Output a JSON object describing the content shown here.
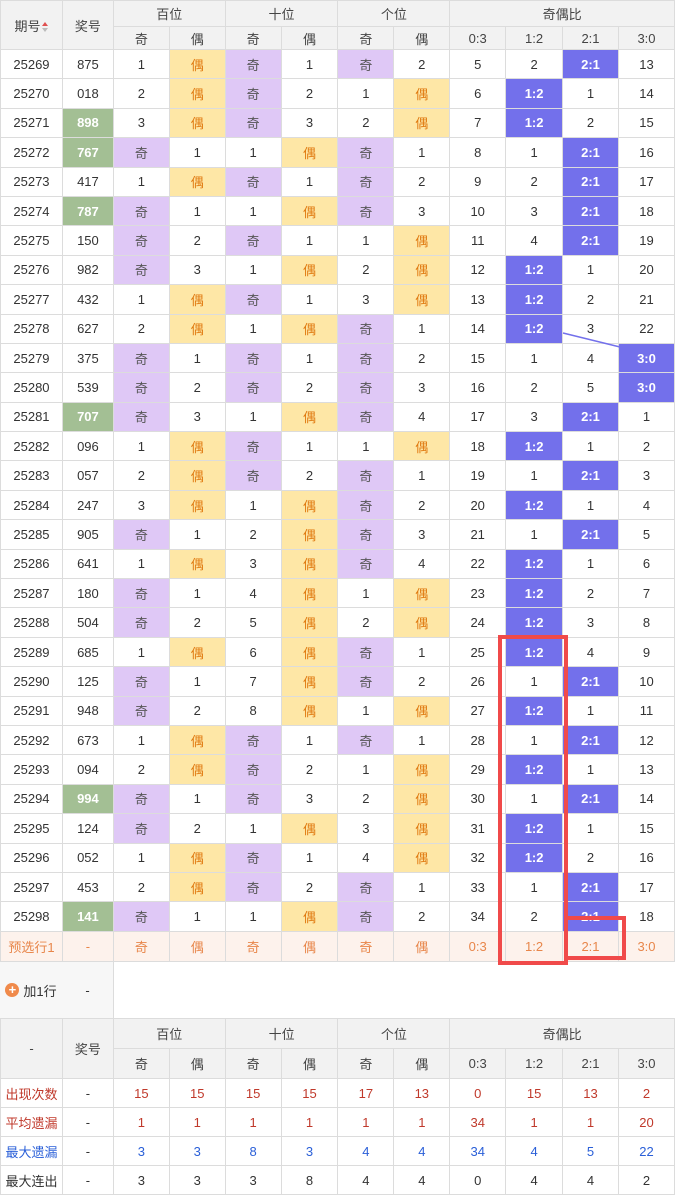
{
  "header": {
    "period": "期号",
    "draw": "奖号",
    "groups": [
      "百位",
      "十位",
      "个位",
      "奇偶比"
    ],
    "sub": [
      "奇",
      "偶",
      "奇",
      "偶",
      "奇",
      "偶",
      "0:3",
      "1:2",
      "2:1",
      "3:0"
    ]
  },
  "rows": [
    [
      "25269",
      "875",
      "1",
      "偶",
      "奇",
      "1",
      "奇",
      "2",
      "5",
      "2",
      "2:1",
      "13"
    ],
    [
      "25270",
      "018",
      "2",
      "偶",
      "奇",
      "2",
      "1",
      "偶",
      "6",
      "1:2",
      "1",
      "14"
    ],
    [
      "25271",
      "898",
      "3",
      "偶",
      "奇",
      "3",
      "2",
      "偶",
      "7",
      "1:2",
      "2",
      "15"
    ],
    [
      "25272",
      "767",
      "奇",
      "1",
      "1",
      "偶",
      "奇",
      "1",
      "8",
      "1",
      "2:1",
      "16"
    ],
    [
      "25273",
      "417",
      "1",
      "偶",
      "奇",
      "1",
      "奇",
      "2",
      "9",
      "2",
      "2:1",
      "17"
    ],
    [
      "25274",
      "787",
      "奇",
      "1",
      "1",
      "偶",
      "奇",
      "3",
      "10",
      "3",
      "2:1",
      "18"
    ],
    [
      "25275",
      "150",
      "奇",
      "2",
      "奇",
      "1",
      "1",
      "偶",
      "11",
      "4",
      "2:1",
      "19"
    ],
    [
      "25276",
      "982",
      "奇",
      "3",
      "1",
      "偶",
      "2",
      "偶",
      "12",
      "1:2",
      "1",
      "20"
    ],
    [
      "25277",
      "432",
      "1",
      "偶",
      "奇",
      "1",
      "3",
      "偶",
      "13",
      "1:2",
      "2",
      "21"
    ],
    [
      "25278",
      "627",
      "2",
      "偶",
      "1",
      "偶",
      "奇",
      "1",
      "14",
      "1:2",
      "3",
      "22"
    ],
    [
      "25279",
      "375",
      "奇",
      "1",
      "奇",
      "1",
      "奇",
      "2",
      "15",
      "1",
      "4",
      "3:0"
    ],
    [
      "25280",
      "539",
      "奇",
      "2",
      "奇",
      "2",
      "奇",
      "3",
      "16",
      "2",
      "5",
      "3:0"
    ],
    [
      "25281",
      "707",
      "奇",
      "3",
      "1",
      "偶",
      "奇",
      "4",
      "17",
      "3",
      "2:1",
      "1"
    ],
    [
      "25282",
      "096",
      "1",
      "偶",
      "奇",
      "1",
      "1",
      "偶",
      "18",
      "1:2",
      "1",
      "2"
    ],
    [
      "25283",
      "057",
      "2",
      "偶",
      "奇",
      "2",
      "奇",
      "1",
      "19",
      "1",
      "2:1",
      "3"
    ],
    [
      "25284",
      "247",
      "3",
      "偶",
      "1",
      "偶",
      "奇",
      "2",
      "20",
      "1:2",
      "1",
      "4"
    ],
    [
      "25285",
      "905",
      "奇",
      "1",
      "2",
      "偶",
      "奇",
      "3",
      "21",
      "1",
      "2:1",
      "5"
    ],
    [
      "25286",
      "641",
      "1",
      "偶",
      "3",
      "偶",
      "奇",
      "4",
      "22",
      "1:2",
      "1",
      "6"
    ],
    [
      "25287",
      "180",
      "奇",
      "1",
      "4",
      "偶",
      "1",
      "偶",
      "23",
      "1:2",
      "2",
      "7"
    ],
    [
      "25288",
      "504",
      "奇",
      "2",
      "5",
      "偶",
      "2",
      "偶",
      "24",
      "1:2",
      "3",
      "8"
    ],
    [
      "25289",
      "685",
      "1",
      "偶",
      "6",
      "偶",
      "奇",
      "1",
      "25",
      "1:2",
      "4",
      "9"
    ],
    [
      "25290",
      "125",
      "奇",
      "1",
      "7",
      "偶",
      "奇",
      "2",
      "26",
      "1",
      "2:1",
      "10"
    ],
    [
      "25291",
      "948",
      "奇",
      "2",
      "8",
      "偶",
      "1",
      "偶",
      "27",
      "1:2",
      "1",
      "11"
    ],
    [
      "25292",
      "673",
      "1",
      "偶",
      "奇",
      "1",
      "奇",
      "1",
      "28",
      "1",
      "2:1",
      "12"
    ],
    [
      "25293",
      "094",
      "2",
      "偶",
      "奇",
      "2",
      "1",
      "偶",
      "29",
      "1:2",
      "1",
      "13"
    ],
    [
      "25294",
      "994",
      "奇",
      "1",
      "奇",
      "3",
      "2",
      "偶",
      "30",
      "1",
      "2:1",
      "14"
    ],
    [
      "25295",
      "124",
      "奇",
      "2",
      "1",
      "偶",
      "3",
      "偶",
      "31",
      "1:2",
      "1",
      "15"
    ],
    [
      "25296",
      "052",
      "1",
      "偶",
      "奇",
      "1",
      "4",
      "偶",
      "32",
      "1:2",
      "2",
      "16"
    ],
    [
      "25297",
      "453",
      "2",
      "偶",
      "奇",
      "2",
      "奇",
      "1",
      "33",
      "1",
      "2:1",
      "17"
    ],
    [
      "25298",
      "141",
      "奇",
      "1",
      "1",
      "偶",
      "奇",
      "2",
      "34",
      "2",
      "2:1",
      "18"
    ]
  ],
  "hot_draws": [
    "898",
    "767",
    "787",
    "707",
    "994",
    "141"
  ],
  "preselect": {
    "label": "预选行1",
    "draw": "-",
    "cells": [
      "奇",
      "偶",
      "奇",
      "偶",
      "奇",
      "偶",
      "0:3",
      "1:2",
      "2:1",
      "3:0"
    ]
  },
  "add_row": {
    "label": "加1行",
    "dash": "-"
  },
  "stats_header": {
    "dash": "-",
    "draw": "奖号",
    "groups": [
      "百位",
      "十位",
      "个位",
      "奇偶比"
    ],
    "sub": [
      "奇",
      "偶",
      "奇",
      "偶",
      "奇",
      "偶",
      "0:3",
      "1:2",
      "2:1",
      "3:0"
    ]
  },
  "stats": [
    {
      "label": "出现次数",
      "draw": "-",
      "values": [
        "15",
        "15",
        "15",
        "15",
        "17",
        "13",
        "0",
        "15",
        "13",
        "2"
      ],
      "color": "r"
    },
    {
      "label": "平均遗漏",
      "draw": "-",
      "values": [
        "1",
        "1",
        "1",
        "1",
        "1",
        "1",
        "34",
        "1",
        "1",
        "20"
      ],
      "color": "r"
    },
    {
      "label": "最大遗漏",
      "draw": "-",
      "values": [
        "3",
        "3",
        "8",
        "3",
        "4",
        "4",
        "34",
        "4",
        "5",
        "22"
      ],
      "color": "b"
    },
    {
      "label": "最大连出",
      "draw": "-",
      "values": [
        "3",
        "3",
        "3",
        "8",
        "4",
        "4",
        "0",
        "4",
        "4",
        "2"
      ],
      "color": "d"
    }
  ],
  "colors": {
    "odd": "#dfc8f6",
    "even": "#fee7a6",
    "hit": "#7370eb",
    "hot": "#a3bf94",
    "highlight": "#f04a4a",
    "pre_text": "#e8864a"
  }
}
